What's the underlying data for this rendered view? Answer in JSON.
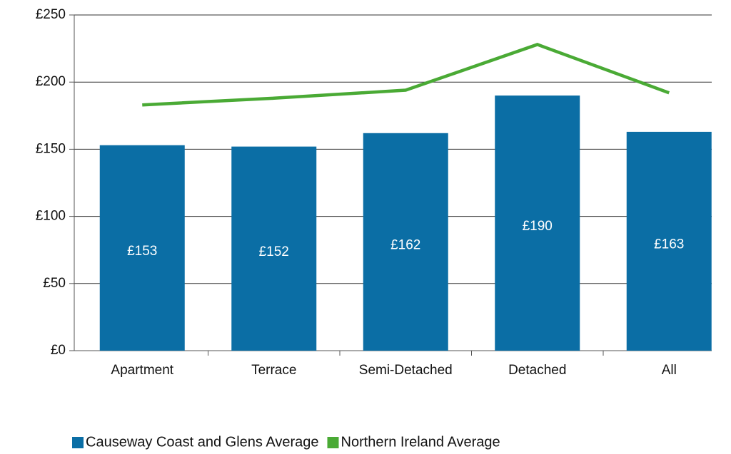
{
  "chart_data": {
    "type": "bar-line",
    "categories": [
      "Apartment",
      "Terrace",
      "Semi-Detached",
      "Detached",
      "All"
    ],
    "series": [
      {
        "name": "Causeway Coast and Glens Average",
        "type": "bar",
        "color": "#0b6ea5",
        "values": [
          153,
          152,
          162,
          190,
          163
        ],
        "value_labels": [
          "£153",
          "£152",
          "£162",
          "£190",
          "£163"
        ]
      },
      {
        "name": "Northern Ireland Average",
        "type": "line",
        "color": "#4aaa35",
        "values": [
          183,
          188,
          194,
          228,
          192
        ]
      }
    ],
    "ylim": [
      0,
      250
    ],
    "yticks": [
      {
        "value": 0,
        "label": "£0"
      },
      {
        "value": 50,
        "label": "£50"
      },
      {
        "value": 100,
        "label": "£100"
      },
      {
        "value": 150,
        "label": "£150"
      },
      {
        "value": 200,
        "label": "£200"
      },
      {
        "value": 250,
        "label": "£250"
      }
    ],
    "grid": true,
    "legend": "bottom"
  }
}
